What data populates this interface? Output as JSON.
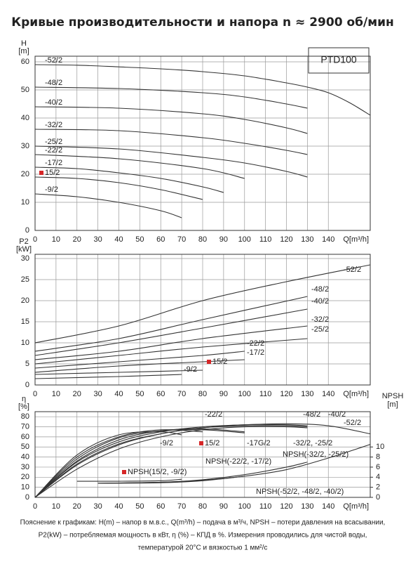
{
  "title": "Кривые производительности и напора n ≈ 2900 об/мин",
  "footnote": [
    "Пояснение к графикам: H(m) – напор в м.в.с., Q(m³/h) – подача в м³/ч, NPSH – потери давления на всасывании,",
    "P2(kW) – потребляемая мощность в кВт, η (%) – КПД в %. Измерения проводились для чистой воды,",
    "температурой 20°C и вязкостью 1 мм²/с"
  ],
  "chart_data": [
    {
      "type": "line",
      "annotation": "PTD100",
      "ylabel": [
        "H",
        "[m]"
      ],
      "xlabel": "Q[m³/h]",
      "xlim": [
        0,
        160
      ],
      "xticks": [
        0,
        10,
        20,
        30,
        40,
        50,
        60,
        70,
        80,
        90,
        100,
        110,
        120,
        130,
        140
      ],
      "ylim": [
        0,
        62
      ],
      "yticks": [
        0,
        10,
        20,
        30,
        40,
        50,
        60
      ],
      "grid": true,
      "series": [
        {
          "name": "-52/2",
          "color": "#333333",
          "x": [
            0,
            20,
            40,
            60,
            80,
            100,
            120,
            130,
            140,
            150,
            160
          ],
          "values": [
            59,
            58.8,
            58.2,
            57.5,
            56.5,
            55,
            52.5,
            51,
            49,
            45.5,
            41
          ]
        },
        {
          "name": "-48/2",
          "color": "#333333",
          "x": [
            0,
            40,
            80,
            100,
            120,
            130
          ],
          "values": [
            51,
            50.5,
            49,
            47.5,
            45,
            43.5
          ]
        },
        {
          "name": "-40/2",
          "color": "#333333",
          "x": [
            0,
            40,
            80,
            100,
            120,
            130
          ],
          "values": [
            44,
            43.5,
            41.5,
            39.5,
            36.5,
            34.5
          ]
        },
        {
          "name": "-32/2",
          "color": "#333333",
          "x": [
            0,
            40,
            80,
            100,
            120,
            130
          ],
          "values": [
            36,
            35.5,
            33,
            31,
            28.5,
            27
          ]
        },
        {
          "name": "-25/2",
          "color": "#333333",
          "x": [
            0,
            40,
            80,
            100,
            120,
            130
          ],
          "values": [
            30,
            29,
            26,
            24,
            21,
            19
          ]
        },
        {
          "name": "-22/2",
          "color": "#333333",
          "x": [
            0,
            40,
            80,
            100
          ],
          "values": [
            27,
            25.5,
            22,
            18.5
          ]
        },
        {
          "name": "-17/2",
          "color": "#333333",
          "x": [
            0,
            20,
            40,
            60,
            80,
            90
          ],
          "values": [
            22.5,
            22,
            20.5,
            18.5,
            15.5,
            13.5
          ]
        },
        {
          "name": "15/2",
          "color": "#333333",
          "marker_color": "#d62728",
          "x": [
            0,
            20,
            40,
            60,
            80
          ],
          "values": [
            19,
            18.5,
            17,
            14.5,
            11
          ]
        },
        {
          "name": "-9/2",
          "color": "#333333",
          "x": [
            0,
            20,
            40,
            60,
            70
          ],
          "values": [
            13,
            12,
            10,
            7,
            4.5
          ]
        }
      ]
    },
    {
      "type": "line",
      "ylabel": [
        "P2",
        "[kW]"
      ],
      "xlabel": "Q[m³/h]",
      "xlim": [
        0,
        160
      ],
      "xticks": [
        0,
        10,
        20,
        30,
        40,
        50,
        60,
        70,
        80,
        90,
        100,
        110,
        120,
        130,
        140
      ],
      "ylim": [
        0,
        31
      ],
      "yticks": [
        0,
        5,
        10,
        15,
        20,
        25,
        30
      ],
      "grid": true,
      "series": [
        {
          "name": "-52/2",
          "color": "#333333",
          "x": [
            0,
            40,
            80,
            120,
            160
          ],
          "values": [
            10,
            14,
            20,
            24.5,
            28.5
          ]
        },
        {
          "name": "-48/2",
          "color": "#333333",
          "x": [
            0,
            40,
            80,
            130
          ],
          "values": [
            8,
            11,
            15.5,
            21
          ]
        },
        {
          "name": "-40/2",
          "color": "#333333",
          "x": [
            0,
            40,
            80,
            130
          ],
          "values": [
            7,
            10,
            13.5,
            18
          ]
        },
        {
          "name": "-32/2",
          "color": "#333333",
          "x": [
            0,
            40,
            80,
            130
          ],
          "values": [
            6,
            8,
            11,
            14
          ]
        },
        {
          "name": "-25/2",
          "color": "#333333",
          "x": [
            0,
            40,
            80,
            130
          ],
          "values": [
            5,
            7,
            9,
            11
          ]
        },
        {
          "name": "-22/2",
          "color": "#333333",
          "x": [
            0,
            40,
            80,
            100
          ],
          "values": [
            4,
            5.5,
            7,
            8
          ]
        },
        {
          "name": "-17/2",
          "color": "#333333",
          "x": [
            0,
            40,
            80,
            100
          ],
          "values": [
            3,
            4.5,
            5.5,
            6
          ]
        },
        {
          "name": "15/2",
          "color": "#333333",
          "marker_color": "#d62728",
          "x": [
            0,
            40,
            80
          ],
          "values": [
            2.5,
            3,
            3.5
          ]
        },
        {
          "name": "-9/2",
          "color": "#333333",
          "x": [
            0,
            40,
            70
          ],
          "values": [
            1.5,
            2,
            2.5
          ]
        }
      ]
    },
    {
      "type": "line",
      "ylabel": [
        "η",
        "[%]"
      ],
      "y2label": [
        "NPSH",
        "[m]"
      ],
      "xlabel": "Q[m³/h]",
      "xlim": [
        0,
        160
      ],
      "xticks": [
        0,
        10,
        20,
        30,
        40,
        50,
        60,
        70,
        80,
        90,
        100,
        110,
        120,
        130,
        140
      ],
      "ylim": [
        0,
        85
      ],
      "yticks": [
        0,
        10,
        20,
        30,
        40,
        50,
        60,
        70,
        80
      ],
      "y2lim": [
        0,
        17
      ],
      "y2ticks": [
        0,
        2,
        4,
        6,
        8,
        10
      ],
      "grid": true,
      "series": [
        {
          "name": "-52/2",
          "color": "#333333",
          "x": [
            0,
            20,
            40,
            60,
            80,
            100,
            120,
            140,
            160
          ],
          "values": [
            0,
            35,
            55,
            65,
            70,
            72,
            73,
            71,
            63
          ]
        },
        {
          "name": "-48/2",
          "color": "#333333",
          "x": [
            0,
            20,
            40,
            60,
            80,
            100,
            120,
            130
          ],
          "values": [
            0,
            33,
            53,
            63,
            69,
            72,
            72,
            71
          ]
        },
        {
          "name": "-40/2",
          "color": "#333333",
          "x": [
            0,
            20,
            40,
            60,
            80,
            100,
            120,
            130
          ],
          "values": [
            0,
            32,
            52,
            63,
            69,
            71,
            71,
            70
          ]
        },
        {
          "name": "-32/2, -25/2",
          "color": "#333333",
          "x": [
            0,
            20,
            40,
            60,
            80,
            100,
            120,
            130
          ],
          "values": [
            0,
            28,
            48,
            60,
            67,
            70,
            70,
            69
          ]
        },
        {
          "name": "-22/2",
          "color": "#333333",
          "x": [
            0,
            20,
            40,
            60,
            80,
            100
          ],
          "values": [
            0,
            36,
            57,
            66,
            68,
            65
          ]
        },
        {
          "name": "-17G/2",
          "color": "#333333",
          "x": [
            0,
            20,
            40,
            60,
            80,
            100
          ],
          "values": [
            0,
            38,
            59,
            66,
            67,
            64
          ]
        },
        {
          "name": "15/2",
          "color": "#333333",
          "marker_color": "#d62728",
          "x": [
            0,
            20,
            40,
            60,
            80
          ],
          "values": [
            0,
            40,
            60,
            67,
            65
          ]
        },
        {
          "name": "-9/2",
          "color": "#333333",
          "x": [
            0,
            20,
            40,
            60,
            70
          ],
          "values": [
            0,
            42,
            62,
            65,
            62
          ]
        },
        {
          "name": "NPSH(15/2, -9/2)",
          "color": "#333333",
          "marker_color": "#d62728",
          "axis": "y2",
          "x": [
            20,
            40,
            60,
            70
          ],
          "values": [
            3.2,
            3.2,
            3.3,
            3.6
          ]
        },
        {
          "name": "NPSH(-22/2, -17/2)",
          "color": "#333333",
          "axis": "y2",
          "x": [
            30,
            60,
            80,
            100
          ],
          "values": [
            2.8,
            2.9,
            3.3,
            4.2
          ]
        },
        {
          "name": "NPSH(-32/2, -25/2)",
          "color": "#333333",
          "axis": "y2",
          "x": [
            30,
            60,
            80,
            100,
            120,
            130
          ],
          "values": [
            2.8,
            3,
            3.5,
            4.5,
            6,
            7
          ]
        },
        {
          "name": "NPSH(-52/2, -48/2, -40/2)",
          "color": "#333333",
          "axis": "y2",
          "x": [
            30,
            60,
            80,
            100,
            120,
            140,
            160
          ],
          "values": [
            2.8,
            3,
            3.4,
            4.2,
            5.5,
            7.8,
            10.5
          ]
        }
      ]
    }
  ]
}
